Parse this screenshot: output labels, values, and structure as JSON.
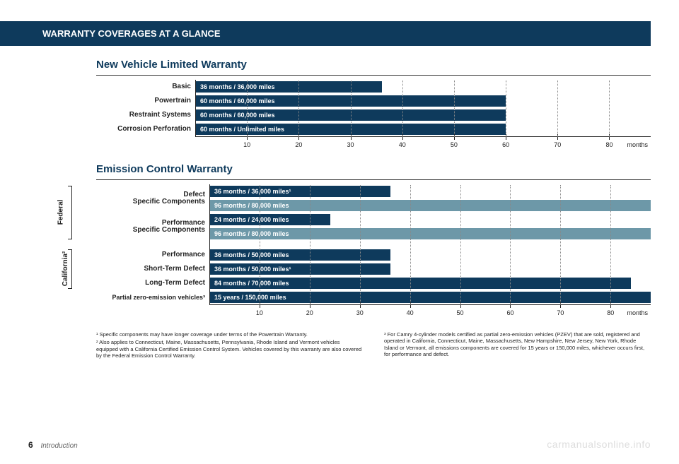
{
  "header": "WARRANTY COVERAGES AT A GLANCE",
  "colors": {
    "dark": "#0e3a5c",
    "light": "#6d98a8",
    "bg": "#ffffff",
    "text": "#222222",
    "grid": "#888888"
  },
  "axis": {
    "max": 88,
    "ticks": [
      10,
      20,
      30,
      40,
      50,
      60,
      70,
      80
    ],
    "label": "months"
  },
  "chart1": {
    "title": "New Vehicle Limited Warranty",
    "rows": [
      {
        "label": "Basic",
        "value": 36,
        "text": "36 months  /  36,000 miles",
        "color": "dark"
      },
      {
        "label": "Powertrain",
        "value": 60,
        "text": "60 months  /  60,000 miles",
        "color": "dark"
      },
      {
        "label": "Restraint Systems",
        "value": 60,
        "text": "60 months  /  60,000 miles",
        "color": "dark"
      },
      {
        "label": "Corrosion Perforation",
        "value": 60,
        "text": "60 months  /  Unlimited miles",
        "color": "dark"
      }
    ]
  },
  "chart2": {
    "title": "Emission Control Warranty",
    "groups": [
      {
        "label": "Federal",
        "pairs": [
          {
            "label1": "Defect",
            "label2": "Specific Components",
            "bars": [
              {
                "value": 36,
                "text": "36 months  /  36,000 miles¹",
                "color": "dark"
              },
              {
                "value": 96,
                "text": "96 months  /  80,000 miles",
                "color": "light"
              }
            ]
          },
          {
            "label1": "Performance",
            "label2": "Specific Components",
            "bars": [
              {
                "value": 24,
                "text": "24 months  /  24,000 miles",
                "color": "dark"
              },
              {
                "value": 96,
                "text": "96 months  /  80,000 miles",
                "color": "light"
              }
            ]
          }
        ]
      },
      {
        "label": "California²",
        "singles": [
          {
            "label": "Performance",
            "value": 36,
            "text": "36 months  /  50,000 miles",
            "color": "dark"
          },
          {
            "label": "Short-Term Defect",
            "value": 36,
            "text": "36 months  /  50,000 miles¹",
            "color": "dark"
          },
          {
            "label": "Long-Term Defect",
            "value": 84,
            "text": "84 months  /  70,000 miles",
            "color": "dark"
          }
        ]
      }
    ],
    "extra": {
      "label": "Partial zero-emission vehicles³",
      "value": 88,
      "text": "15 years  /  150,000 miles",
      "color": "dark"
    }
  },
  "footnotes": {
    "left": [
      "¹ Specific components may have longer coverage under terms of the Powertrain Warranty.",
      "² Also applies to Connecticut, Maine, Massachusetts, Pennsylvania, Rhode Island and Vermont vehicles equipped with a California Certified Emission Control System. Vehicles covered by this warranty are also covered by the Federal Emission Control Warranty."
    ],
    "right": [
      "³ For Camry 4-cylinder models certified as partial zero-emission vehicles (PZEV) that are sold, registered and operated in California, Connecticut, Maine, Massachusetts, New Hampshire, New Jersey, New York, Rhode Island or Vermont, all emissions components are covered for 15 years or 150,000 miles, whichever occurs first, for performance and defect."
    ]
  },
  "footer": {
    "page": "6",
    "section": "Introduction"
  },
  "watermark": "carmanualsonline.info"
}
